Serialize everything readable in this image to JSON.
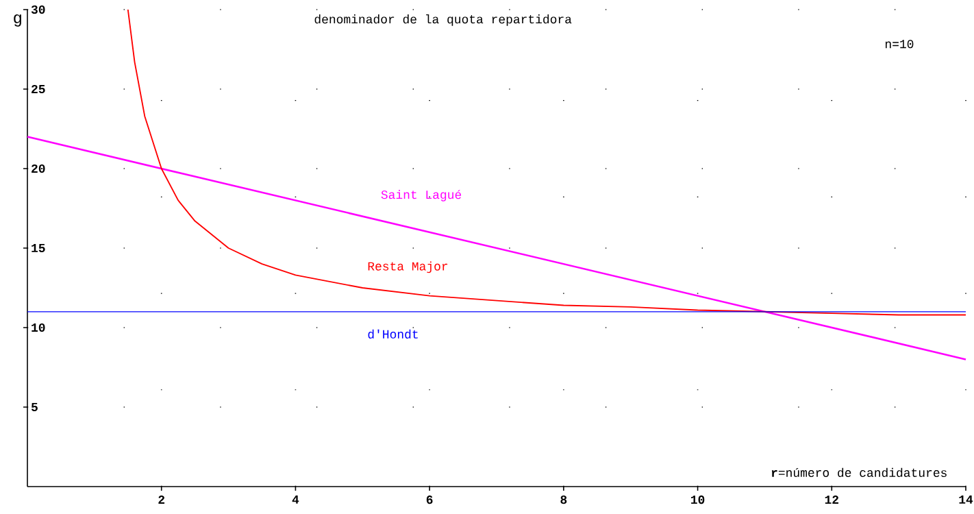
{
  "chart_data": {
    "type": "line",
    "title": "denominador de la quota repartidora",
    "xlabel": "**r**=número de candidatures",
    "ylabel": "g",
    "annotations": [
      "n=10"
    ],
    "xlim": [
      0,
      14
    ],
    "ylim": [
      0,
      30
    ],
    "xticks": [
      2,
      4,
      6,
      8,
      10,
      12,
      14
    ],
    "yticks": [
      5,
      10,
      15,
      20,
      25,
      30
    ],
    "grid": true,
    "legend": false,
    "marker": "none",
    "line_style": "solid",
    "series": [
      {
        "name": "Saint Lagué",
        "color": "#ff00ff",
        "x": [
          0,
          14
        ],
        "values": [
          22,
          8
        ]
      },
      {
        "name": "Resta Major",
        "color": "#ff0000",
        "x": [
          1.5,
          1.6,
          1.75,
          2,
          2.25,
          2.5,
          3,
          3.5,
          4,
          5,
          6,
          7,
          8,
          9,
          10,
          11,
          12,
          13,
          14
        ],
        "values": [
          30,
          26.7,
          23.3,
          20,
          18,
          16.7,
          15,
          14,
          13.3,
          12.5,
          12,
          11.7,
          11.4,
          11.3,
          11.1,
          11,
          10.9,
          10.8,
          10.8
        ]
      },
      {
        "name": "d'Hondt",
        "color": "#0000ff",
        "x": [
          0,
          14
        ],
        "values": [
          11,
          11
        ]
      }
    ]
  }
}
